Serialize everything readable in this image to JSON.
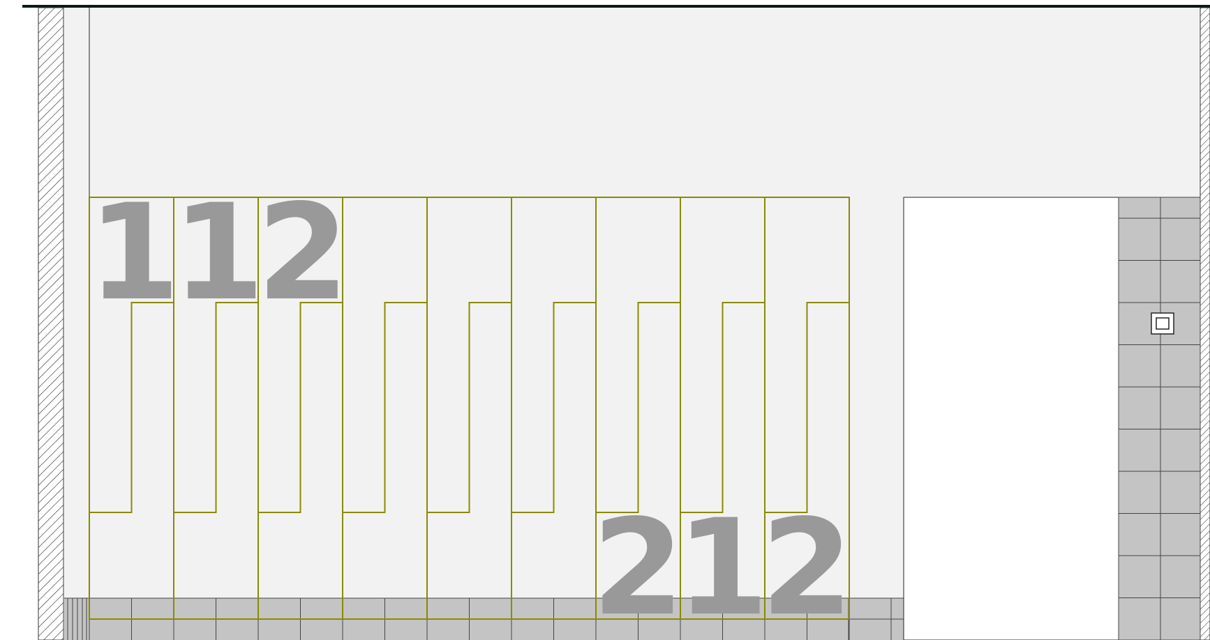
{
  "plan": {
    "colors": {
      "background": "#ffffff",
      "room_fill": "#f2f2f2",
      "wall_hatch": "#333333",
      "tile_fill": "#c4c4c4",
      "tile_line": "#444444",
      "panel_outline": "#8a8a00",
      "label_gray": "#999999",
      "top_border": "#0a1a14"
    },
    "panels": {
      "count": 9,
      "labels_top": [
        "1",
        "1",
        "2",
        "",
        "",
        "",
        "",
        "",
        ""
      ],
      "labels_bottom": [
        "",
        "",
        "",
        "",
        "",
        "",
        "2",
        "1",
        "2"
      ]
    },
    "right_tile_column": {
      "rows": 10,
      "marker_icon": "square-outline-icon"
    }
  }
}
